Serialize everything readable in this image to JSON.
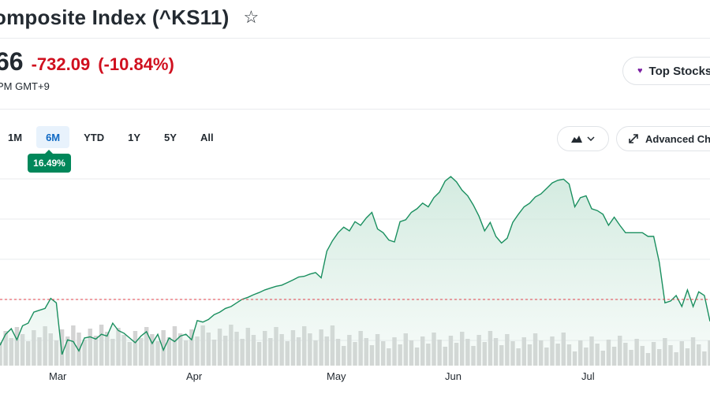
{
  "header": {
    "title": "omposite Index (^KS11)",
    "star_icon": "star-outline-icon"
  },
  "quote": {
    "price": "66",
    "change": "-732.09",
    "change_percent": "(-10.84%)",
    "market_time": "PM GMT+9"
  },
  "top_stocks": {
    "label": "Top Stocks",
    "icon": "heart-icon",
    "icon_color": "#7b1fa2"
  },
  "range_tabs": [
    {
      "label": "1M"
    },
    {
      "label": "6M",
      "active": true
    },
    {
      "label": "YTD"
    },
    {
      "label": "1Y"
    },
    {
      "label": "5Y"
    },
    {
      "label": "All"
    }
  ],
  "performance_badge": "16.49%",
  "chart_controls": {
    "chart_type_icon": "mountain-chart-icon",
    "advanced_label": "Advanced Ch",
    "advanced_icon": "expand-arrows-icon"
  },
  "colors": {
    "line": "#1a8f5f",
    "area_top": "#cfe9dd",
    "negative": "#d0101f",
    "badge": "#00875a",
    "volume": "#d3d3d3",
    "reference": "#e0414a"
  },
  "chart_data": {
    "type": "area",
    "x_labels": [
      "Mar",
      "Apr",
      "May",
      "Jun",
      "Jul"
    ],
    "grid": true,
    "reference_line": "previous-close",
    "series": [
      {
        "values": [
          2455,
          2485,
          2500,
          2470,
          2508,
          2515,
          2545,
          2550,
          2555,
          2582,
          2570,
          2430,
          2470,
          2465,
          2440,
          2475,
          2478,
          2472,
          2485,
          2480,
          2515,
          2495,
          2488,
          2475,
          2462,
          2480,
          2492,
          2460,
          2485,
          2442,
          2475,
          2465,
          2480,
          2485,
          2470,
          2522,
          2518,
          2525,
          2538,
          2545,
          2555,
          2560,
          2570,
          2580,
          2585,
          2592,
          2598,
          2605,
          2610,
          2615,
          2618,
          2625,
          2632,
          2640,
          2642,
          2648,
          2652,
          2638,
          2710,
          2738,
          2760,
          2775,
          2765,
          2790,
          2780,
          2800,
          2815,
          2770,
          2760,
          2740,
          2735,
          2790,
          2795,
          2815,
          2825,
          2840,
          2830,
          2855,
          2870,
          2900,
          2912,
          2898,
          2875,
          2860,
          2835,
          2805,
          2765,
          2788,
          2750,
          2732,
          2745,
          2788,
          2810,
          2830,
          2840,
          2857,
          2865,
          2880,
          2895,
          2902,
          2905,
          2892,
          2830,
          2855,
          2860,
          2825,
          2820,
          2810,
          2780,
          2802,
          2780,
          2760,
          2760,
          2760,
          2760,
          2750,
          2750,
          2680,
          2570,
          2575,
          2590,
          2560,
          2605,
          2560,
          2600,
          2590,
          2520
        ]
      }
    ]
  }
}
